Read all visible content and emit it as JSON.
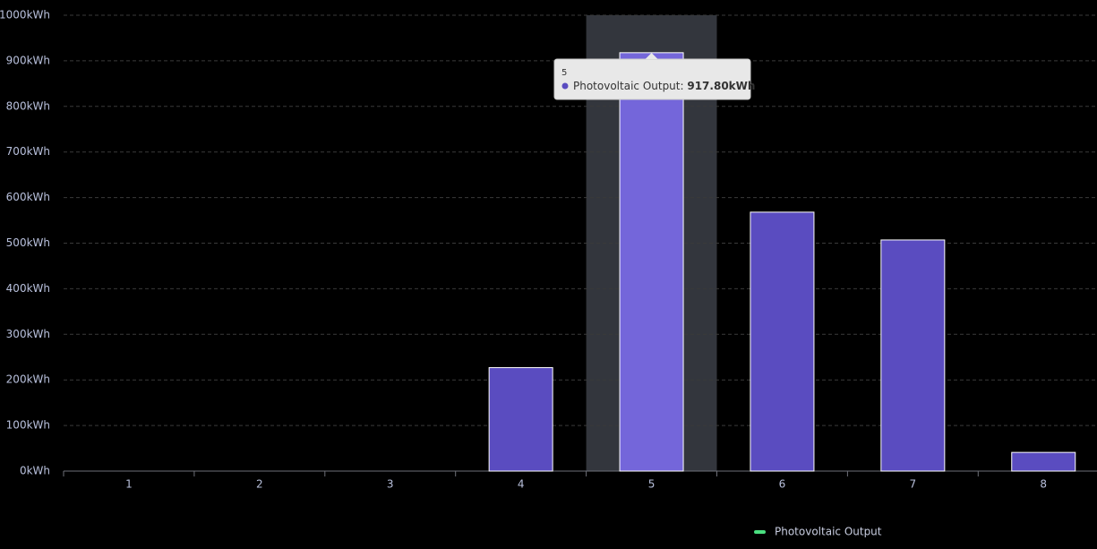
{
  "chart_data": {
    "type": "bar",
    "categories": [
      "1",
      "2",
      "3",
      "4",
      "5",
      "6",
      "7",
      "8"
    ],
    "series": [
      {
        "name": "Photovoltaic Output",
        "color": "#5a4cc0",
        "legend_color": "#4ade80",
        "values": [
          0,
          0,
          0,
          227,
          917.8,
          568,
          507,
          41
        ],
        "value_labels": [
          null,
          null,
          null,
          null,
          "917.80kWh",
          null,
          null,
          null
        ]
      }
    ],
    "ylim": [
      0,
      1000
    ],
    "yticks": [
      {
        "value": 0,
        "label": "0kWh"
      },
      {
        "value": 100,
        "label": "100kWh"
      },
      {
        "value": 200,
        "label": "200kWh"
      },
      {
        "value": 300,
        "label": "300kWh"
      },
      {
        "value": 400,
        "label": "400kWh"
      },
      {
        "value": 500,
        "label": "500kWh"
      },
      {
        "value": 600,
        "label": "600kWh"
      },
      {
        "value": 700,
        "label": "700kWh"
      },
      {
        "value": 800,
        "label": "800kWh"
      },
      {
        "value": 900,
        "label": "900kWh"
      },
      {
        "value": 1000,
        "label": "1000kWh"
      }
    ],
    "grid": true,
    "legend": "bottom",
    "highlight": 4
  }
}
